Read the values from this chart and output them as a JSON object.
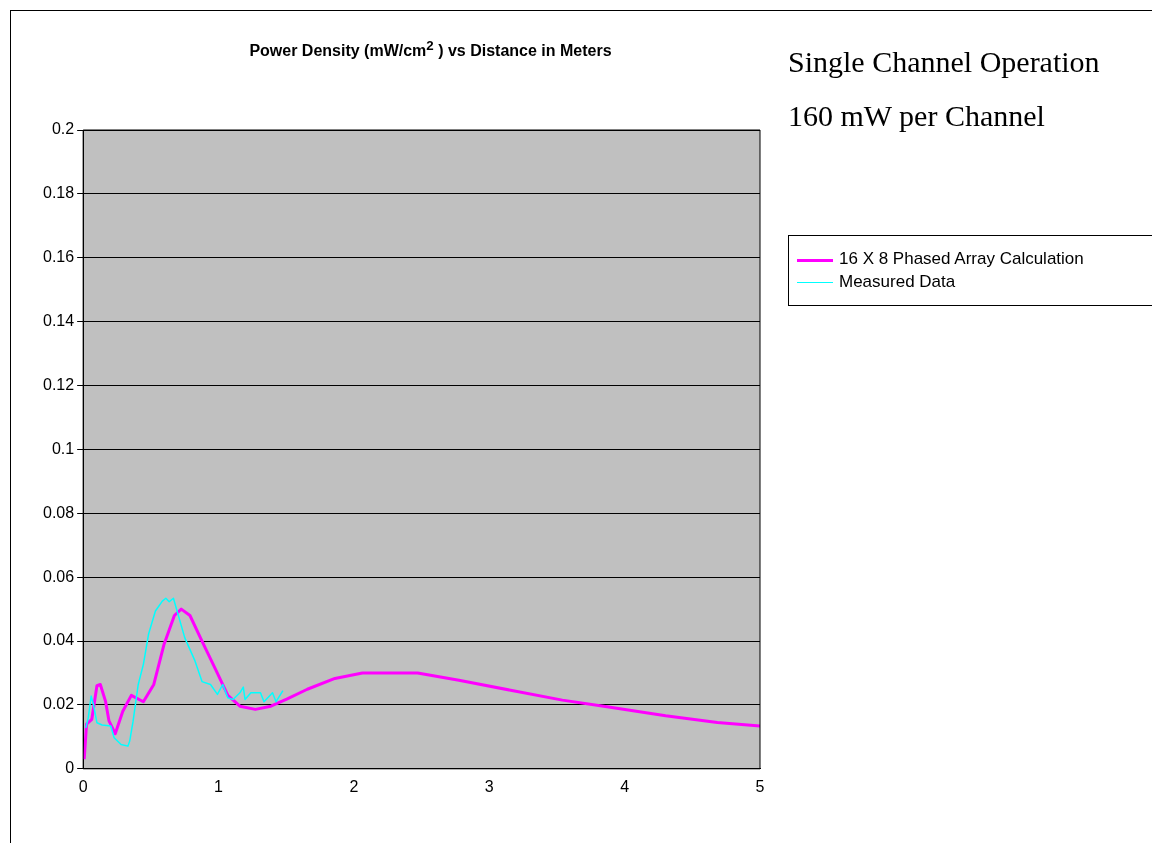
{
  "chart_data": {
    "type": "line",
    "title": "Power Density (mW/cm$^{2}$ ) vs Distance in Meters",
    "annotations": [
      "Single Channel Operation",
      "160 mW per Channel"
    ],
    "xlim": [
      0,
      5
    ],
    "xticks": [
      0,
      1,
      2,
      3,
      4,
      5
    ],
    "ylim": [
      0,
      0.2
    ],
    "yticks": [
      0,
      0.02,
      0.04,
      0.06,
      0.08,
      0.1,
      0.12,
      0.14,
      0.16,
      0.18,
      0.2
    ],
    "grid": "y",
    "legend": "right",
    "marker": "none",
    "line_style": "solid",
    "series": [
      {
        "name": "16 X 8 Phased Array Calculation",
        "color": "#ff00ff",
        "x": [
          0.008,
          0.025,
          0.064,
          0.102,
          0.127,
          0.165,
          0.191,
          0.237,
          0.293,
          0.356,
          0.445,
          0.522,
          0.598,
          0.674,
          0.725,
          0.789,
          0.878,
          0.98,
          1.069,
          1.158,
          1.272,
          1.387,
          1.504,
          1.656,
          1.86,
          2.063,
          2.471,
          2.776,
          3.158,
          3.54,
          3.87,
          4.303,
          4.685,
          5.0
        ],
        "values": [
          0.003,
          0.014,
          0.0155,
          0.026,
          0.0264,
          0.0212,
          0.015,
          0.011,
          0.018,
          0.023,
          0.021,
          0.0264,
          0.039,
          0.048,
          0.05,
          0.048,
          0.04,
          0.031,
          0.023,
          0.0196,
          0.0186,
          0.0196,
          0.0218,
          0.0249,
          0.0283,
          0.03,
          0.03,
          0.0277,
          0.0246,
          0.0215,
          0.0194,
          0.0166,
          0.0145,
          0.0134
        ]
      },
      {
        "name": "Measured Data",
        "color": "#00ffff",
        "x": [
          0.02,
          0.038,
          0.059,
          0.076,
          0.102,
          0.14,
          0.204,
          0.229,
          0.28,
          0.331,
          0.344,
          0.369,
          0.407,
          0.445,
          0.483,
          0.534,
          0.585,
          0.611,
          0.636,
          0.667,
          0.687,
          0.751,
          0.827,
          0.878,
          0.941,
          0.992,
          1.031,
          1.069,
          1.107,
          1.158,
          1.183,
          1.196,
          1.239,
          1.31,
          1.336,
          1.399,
          1.425,
          1.476
        ],
        "values": [
          0.0128,
          0.016,
          0.0228,
          0.0202,
          0.0144,
          0.0137,
          0.0134,
          0.0097,
          0.0076,
          0.0071,
          0.0087,
          0.0149,
          0.0264,
          0.0327,
          0.0421,
          0.0494,
          0.0525,
          0.0534,
          0.0523,
          0.0534,
          0.0504,
          0.041,
          0.0337,
          0.0273,
          0.0264,
          0.0233,
          0.0264,
          0.0222,
          0.0217,
          0.0238,
          0.0256,
          0.0217,
          0.0238,
          0.0238,
          0.021,
          0.0238,
          0.021,
          0.0245
        ]
      }
    ]
  }
}
